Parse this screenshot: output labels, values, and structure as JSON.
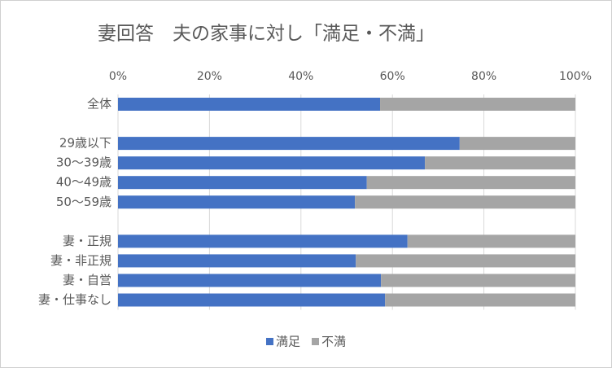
{
  "chart_data": {
    "type": "stacked_barh",
    "title": "妻回答　夫の家事に対し「満足・不満」",
    "categories": [
      "全体",
      null,
      "29歳以下",
      "30～39歳",
      "40～49歳",
      "50～59歳",
      null,
      "妻・正規",
      "妻・非正規",
      "妻・自営",
      "妻・仕事なし"
    ],
    "series": [
      {
        "name": "満足",
        "color": "#4472c4",
        "values": [
          57.3,
          null,
          74.7,
          67.1,
          54.4,
          51.8,
          null,
          63.3,
          52.0,
          57.5,
          58.4
        ]
      },
      {
        "name": "不満",
        "color": "#a5a5a5",
        "values": [
          42.7,
          null,
          25.3,
          32.9,
          45.6,
          48.2,
          null,
          36.7,
          48.0,
          42.5,
          41.6
        ]
      }
    ],
    "xlim": [
      0,
      100
    ],
    "xticks": [
      {
        "value": 0,
        "label": "0%"
      },
      {
        "value": 20,
        "label": "20%"
      },
      {
        "value": 40,
        "label": "40%"
      },
      {
        "value": 60,
        "label": "60%"
      },
      {
        "value": 80,
        "label": "80%"
      },
      {
        "value": 100,
        "label": "100%"
      }
    ],
    "grid": true,
    "legend": "bottom"
  }
}
